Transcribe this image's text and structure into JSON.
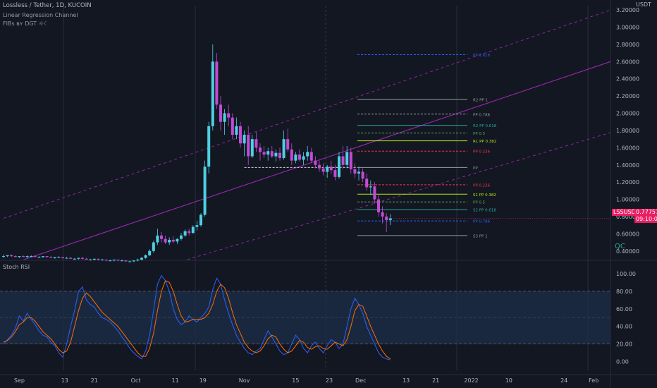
{
  "header": {
    "symbol_line": "Lossless / Tether, 1D, KUCOIN",
    "indicator_1": "Linear Regression Channel",
    "indicator_2": "FIBs ʙʏ DGT ☼☾"
  },
  "axis": {
    "currency": "USDT",
    "price_ticks": [
      "3.20000",
      "3.00000",
      "2.80000",
      "2.60000",
      "2.40000",
      "2.20000",
      "2.00000",
      "1.80000",
      "1.60000",
      "1.40000",
      "1.20000",
      "1.00000",
      "0.80000",
      "0.60000",
      "0.40000"
    ],
    "time_ticks": [
      "Sep",
      "13",
      "21",
      "Oct",
      "11",
      "19",
      "Nov",
      "15",
      "23",
      "Dec",
      "13",
      "21",
      "2022",
      "10",
      "24",
      "Feb"
    ],
    "stoch_ticks": [
      "100.00",
      "80.00",
      "60.00",
      "40.00",
      "20.00",
      "0.00"
    ]
  },
  "last_price": {
    "value": "0.77757",
    "symbol": "LSSUSDT",
    "countdown": "09:10:00",
    "color": "#e91e63"
  },
  "indicator_panel": {
    "title": "Stoch RSI"
  },
  "watermark": "QC",
  "chart_data": [
    {
      "type": "candlestick",
      "title": "Lossless / Tether, 1D, KUCOIN",
      "ylim": [
        0.3,
        3.25
      ],
      "x_axis": "days since Aug 28 2021",
      "candles": [
        [
          0,
          0.34,
          0.36,
          0.32,
          0.34
        ],
        [
          1,
          0.34,
          0.35,
          0.33,
          0.35
        ],
        [
          2,
          0.35,
          0.36,
          0.33,
          0.34
        ],
        [
          3,
          0.34,
          0.35,
          0.33,
          0.33
        ],
        [
          4,
          0.33,
          0.34,
          0.32,
          0.34
        ],
        [
          5,
          0.34,
          0.35,
          0.33,
          0.33
        ],
        [
          6,
          0.33,
          0.35,
          0.32,
          0.34
        ],
        [
          7,
          0.34,
          0.35,
          0.33,
          0.34
        ],
        [
          8,
          0.34,
          0.35,
          0.33,
          0.33
        ],
        [
          9,
          0.33,
          0.34,
          0.32,
          0.33
        ],
        [
          10,
          0.33,
          0.34,
          0.32,
          0.34
        ],
        [
          11,
          0.34,
          0.34,
          0.32,
          0.33
        ],
        [
          12,
          0.33,
          0.34,
          0.32,
          0.32
        ],
        [
          13,
          0.32,
          0.33,
          0.31,
          0.33
        ],
        [
          14,
          0.33,
          0.34,
          0.32,
          0.33
        ],
        [
          15,
          0.33,
          0.33,
          0.31,
          0.32
        ],
        [
          16,
          0.32,
          0.33,
          0.31,
          0.32
        ],
        [
          17,
          0.32,
          0.33,
          0.31,
          0.31
        ],
        [
          18,
          0.31,
          0.32,
          0.3,
          0.31
        ],
        [
          19,
          0.31,
          0.32,
          0.3,
          0.32
        ],
        [
          20,
          0.32,
          0.33,
          0.3,
          0.31
        ],
        [
          21,
          0.31,
          0.32,
          0.3,
          0.3
        ],
        [
          22,
          0.3,
          0.31,
          0.29,
          0.3
        ],
        [
          23,
          0.3,
          0.31,
          0.29,
          0.31
        ],
        [
          24,
          0.31,
          0.31,
          0.29,
          0.3
        ],
        [
          25,
          0.3,
          0.31,
          0.29,
          0.3
        ],
        [
          26,
          0.3,
          0.3,
          0.28,
          0.29
        ],
        [
          27,
          0.29,
          0.3,
          0.28,
          0.29
        ],
        [
          28,
          0.29,
          0.3,
          0.28,
          0.3
        ],
        [
          29,
          0.3,
          0.3,
          0.28,
          0.29
        ],
        [
          30,
          0.29,
          0.3,
          0.28,
          0.29
        ],
        [
          31,
          0.29,
          0.29,
          0.27,
          0.28
        ],
        [
          32,
          0.28,
          0.29,
          0.27,
          0.28
        ],
        [
          33,
          0.28,
          0.29,
          0.27,
          0.29
        ],
        [
          34,
          0.29,
          0.31,
          0.28,
          0.3
        ],
        [
          35,
          0.3,
          0.33,
          0.29,
          0.32
        ],
        [
          36,
          0.32,
          0.36,
          0.31,
          0.35
        ],
        [
          37,
          0.35,
          0.42,
          0.34,
          0.4
        ],
        [
          38,
          0.4,
          0.52,
          0.38,
          0.5
        ],
        [
          39,
          0.5,
          0.66,
          0.47,
          0.58
        ],
        [
          40,
          0.58,
          0.62,
          0.5,
          0.54
        ],
        [
          41,
          0.54,
          0.58,
          0.48,
          0.5
        ],
        [
          42,
          0.5,
          0.56,
          0.47,
          0.53
        ],
        [
          43,
          0.53,
          0.57,
          0.49,
          0.51
        ],
        [
          44,
          0.51,
          0.55,
          0.48,
          0.54
        ],
        [
          45,
          0.54,
          0.61,
          0.52,
          0.58
        ],
        [
          46,
          0.58,
          0.65,
          0.56,
          0.63
        ],
        [
          47,
          0.63,
          0.66,
          0.58,
          0.61
        ],
        [
          48,
          0.61,
          0.7,
          0.6,
          0.68
        ],
        [
          49,
          0.68,
          0.75,
          0.64,
          0.7
        ],
        [
          50,
          0.7,
          0.84,
          0.68,
          0.82
        ],
        [
          51,
          0.82,
          1.45,
          0.8,
          1.38
        ],
        [
          52,
          1.38,
          1.9,
          1.3,
          1.85
        ],
        [
          53,
          1.85,
          2.8,
          1.8,
          2.6
        ],
        [
          54,
          2.6,
          2.7,
          2.05,
          2.1
        ],
        [
          55,
          2.1,
          2.2,
          1.8,
          1.9
        ],
        [
          56,
          1.9,
          2.05,
          1.75,
          2.0
        ],
        [
          57,
          2.0,
          2.1,
          1.85,
          1.95
        ],
        [
          58,
          1.95,
          2.0,
          1.7,
          1.75
        ],
        [
          59,
          1.75,
          1.95,
          1.7,
          1.85
        ],
        [
          60,
          1.85,
          1.9,
          1.6,
          1.65
        ],
        [
          61,
          1.65,
          1.8,
          1.5,
          1.75
        ],
        [
          62,
          1.75,
          1.85,
          1.4,
          1.5
        ],
        [
          63,
          1.5,
          1.75,
          1.48,
          1.7
        ],
        [
          64,
          1.7,
          1.78,
          1.55,
          1.6
        ],
        [
          65,
          1.6,
          1.65,
          1.45,
          1.55
        ],
        [
          66,
          1.55,
          1.62,
          1.48,
          1.52
        ],
        [
          67,
          1.52,
          1.6,
          1.45,
          1.56
        ],
        [
          68,
          1.56,
          1.62,
          1.48,
          1.5
        ],
        [
          69,
          1.5,
          1.58,
          1.44,
          1.54
        ],
        [
          70,
          1.54,
          1.6,
          1.45,
          1.48
        ],
        [
          71,
          1.48,
          1.8,
          1.46,
          1.7
        ],
        [
          72,
          1.7,
          1.82,
          1.55,
          1.58
        ],
        [
          73,
          1.58,
          1.65,
          1.4,
          1.45
        ],
        [
          74,
          1.45,
          1.55,
          1.42,
          1.52
        ],
        [
          75,
          1.52,
          1.58,
          1.44,
          1.46
        ],
        [
          76,
          1.46,
          1.55,
          1.4,
          1.5
        ],
        [
          77,
          1.5,
          1.62,
          1.45,
          1.55
        ],
        [
          78,
          1.55,
          1.6,
          1.42,
          1.45
        ],
        [
          79,
          1.45,
          1.5,
          1.36,
          1.4
        ],
        [
          80,
          1.4,
          1.45,
          1.32,
          1.36
        ],
        [
          81,
          1.36,
          1.42,
          1.28,
          1.32
        ],
        [
          82,
          1.32,
          1.4,
          1.25,
          1.38
        ],
        [
          83,
          1.38,
          1.45,
          1.3,
          1.34
        ],
        [
          84,
          1.34,
          1.4,
          1.22,
          1.26
        ],
        [
          85,
          1.26,
          1.55,
          1.24,
          1.5
        ],
        [
          86,
          1.5,
          1.62,
          1.35,
          1.4
        ],
        [
          87,
          1.4,
          1.62,
          1.36,
          1.55
        ],
        [
          88,
          1.55,
          1.6,
          1.3,
          1.35
        ],
        [
          89,
          1.35,
          1.42,
          1.25,
          1.3
        ],
        [
          90,
          1.3,
          1.38,
          1.22,
          1.32
        ],
        [
          91,
          1.32,
          1.36,
          1.2,
          1.24
        ],
        [
          92,
          1.24,
          1.3,
          1.1,
          1.14
        ],
        [
          93,
          1.14,
          1.22,
          1.05,
          1.15
        ],
        [
          94,
          1.15,
          1.2,
          0.95,
          1.0
        ],
        [
          95,
          1.0,
          1.05,
          0.8,
          0.85
        ],
        [
          96,
          0.85,
          0.92,
          0.72,
          0.8
        ],
        [
          97,
          0.8,
          0.84,
          0.62,
          0.76
        ],
        [
          98,
          0.76,
          0.83,
          0.7,
          0.78
        ]
      ],
      "linear_regression_channel": {
        "center": [
          [
            0,
            0.22
          ],
          [
            157,
            2.65
          ]
        ],
        "upper": [
          [
            0,
            0.78
          ],
          [
            157,
            3.25
          ]
        ],
        "lower": [
          [
            0,
            -0.34
          ],
          [
            157,
            1.82
          ]
        ],
        "color": "#9c27b0"
      },
      "fib_levels": [
        {
          "label": "PP 1.618",
          "value": 2.68,
          "color": "#2962ff",
          "dash": true
        },
        {
          "label": "R2 PP 1",
          "value": 2.16,
          "color": "#9598a1",
          "dash": false
        },
        {
          "label": "PP 0.786",
          "value": 1.99,
          "color": "#9598a1",
          "dash": true
        },
        {
          "label": "R2 PP 0.618",
          "value": 1.86,
          "color": "#26a69a",
          "dash": false
        },
        {
          "label": "PP 0.5",
          "value": 1.77,
          "color": "#4caf50",
          "dash": true
        },
        {
          "label": "R1 PP 0.382",
          "value": 1.68,
          "color": "#b5e61d",
          "dash": false
        },
        {
          "label": "PP 0.236",
          "value": 1.56,
          "color": "#f23645",
          "dash": true
        },
        {
          "label": "PP",
          "value": 1.37,
          "color": "#9598a1",
          "dash": false
        },
        {
          "label": "PP 0.236",
          "value": 1.17,
          "color": "#f23645",
          "dash": true
        },
        {
          "label": "S1 PP 0.382",
          "value": 1.06,
          "color": "#b5e61d",
          "dash": false
        },
        {
          "label": "PP 0.5",
          "value": 0.97,
          "color": "#4caf50",
          "dash": true
        },
        {
          "label": "S2 PP 0.618",
          "value": 0.88,
          "color": "#26a69a",
          "dash": false
        },
        {
          "label": "PP 0.786",
          "value": 0.75,
          "color": "#2962ff",
          "dash": true
        },
        {
          "label": "S3 PP 1",
          "value": 0.58,
          "color": "#9598a1",
          "dash": false
        }
      ]
    },
    {
      "type": "line",
      "title": "Stoch RSI",
      "ylim": [
        -10,
        108
      ],
      "bands": {
        "upper": 80,
        "lower": 20
      },
      "series": [
        {
          "name": "K",
          "color": "#2962ff",
          "values": [
            20,
            25,
            30,
            38,
            52,
            46,
            55,
            48,
            42,
            35,
            30,
            28,
            22,
            18,
            10,
            5,
            20,
            40,
            58,
            80,
            85,
            70,
            65,
            62,
            55,
            50,
            48,
            45,
            40,
            35,
            28,
            22,
            15,
            10,
            6,
            3,
            12,
            30,
            58,
            88,
            98,
            92,
            80,
            60,
            48,
            42,
            45,
            52,
            48,
            45,
            50,
            55,
            62,
            82,
            95,
            88,
            70,
            55,
            42,
            30,
            22,
            15,
            10,
            8,
            12,
            15,
            25,
            35,
            28,
            20,
            12,
            8,
            10,
            20,
            30,
            25,
            15,
            10,
            18,
            22,
            15,
            10,
            18,
            25,
            22,
            15,
            20,
            40,
            60,
            72,
            65,
            55,
            40,
            30,
            20,
            10,
            5,
            3,
            2
          ]
        },
        {
          "name": "D",
          "color": "#ff6d00",
          "values": [
            22,
            24,
            28,
            34,
            42,
            45,
            50,
            50,
            46,
            40,
            34,
            30,
            26,
            20,
            14,
            10,
            12,
            22,
            40,
            58,
            72,
            78,
            74,
            68,
            62,
            56,
            52,
            48,
            44,
            40,
            34,
            28,
            22,
            16,
            10,
            6,
            6,
            15,
            32,
            58,
            80,
            92,
            90,
            80,
            65,
            52,
            45,
            46,
            48,
            48,
            48,
            50,
            55,
            65,
            80,
            88,
            84,
            72,
            56,
            42,
            32,
            22,
            16,
            12,
            10,
            12,
            18,
            26,
            30,
            28,
            20,
            14,
            10,
            12,
            18,
            24,
            22,
            16,
            14,
            17,
            18,
            15,
            14,
            18,
            22,
            20,
            18,
            25,
            40,
            58,
            65,
            63,
            52,
            40,
            30,
            20,
            12,
            6,
            3
          ]
        }
      ]
    }
  ]
}
